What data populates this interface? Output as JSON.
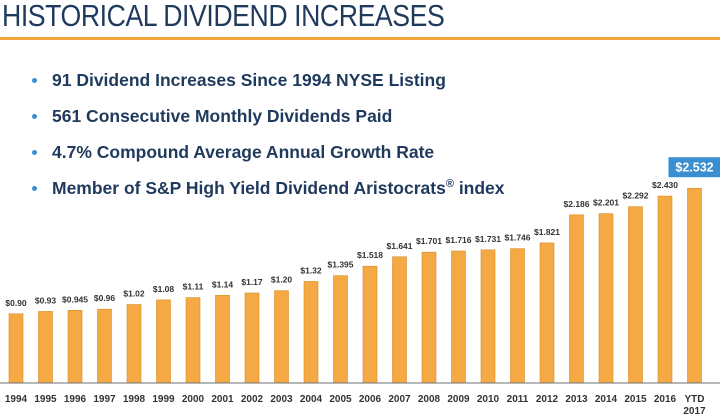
{
  "title": "HISTORICAL DIVIDEND INCREASES",
  "bullets": [
    "91 Dividend Increases Since 1994 NYSE Listing",
    "561 Consecutive Monthly Dividends Paid",
    "4.7% Compound Average Annual Growth Rate",
    "Member of S&P High Yield Dividend Aristocrats",
    "®",
    " index"
  ],
  "colors": {
    "title": "#1f3a5c",
    "accent_rule": "#f2a63b",
    "bar": "#f5a945",
    "callout": "#3a8fd0"
  },
  "chart_data": {
    "type": "bar",
    "categories": [
      "1994",
      "1995",
      "1996",
      "1997",
      "1998",
      "1999",
      "2000",
      "2001",
      "2002",
      "2003",
      "2004",
      "2005",
      "2006",
      "2007",
      "2008",
      "2009",
      "2010",
      "2011",
      "2012",
      "2013",
      "2014",
      "2015",
      "2016",
      "YTD\n2017"
    ],
    "values": [
      0.9,
      0.93,
      0.945,
      0.96,
      1.02,
      1.08,
      1.11,
      1.14,
      1.17,
      1.2,
      1.32,
      1.395,
      1.518,
      1.641,
      1.701,
      1.716,
      1.731,
      1.746,
      1.821,
      2.186,
      2.201,
      2.292,
      2.43,
      2.532
    ],
    "labels": [
      "$0.90",
      "$0.93",
      "$0.945",
      "$0.96",
      "$1.02",
      "$1.08",
      "$1.11",
      "$1.14",
      "$1.17",
      "$1.20",
      "$1.32",
      "$1.395",
      "$1.518",
      "$1.641",
      "$1.701",
      "$1.716",
      "$1.731",
      "$1.746",
      "$1.821",
      "$2.186",
      "$2.201",
      "$2.292",
      "$2.430",
      "$2.532"
    ],
    "highlight_index": 23,
    "ylim": [
      0,
      2.6
    ],
    "grid": false,
    "title": "",
    "xlabel": "",
    "ylabel": ""
  }
}
